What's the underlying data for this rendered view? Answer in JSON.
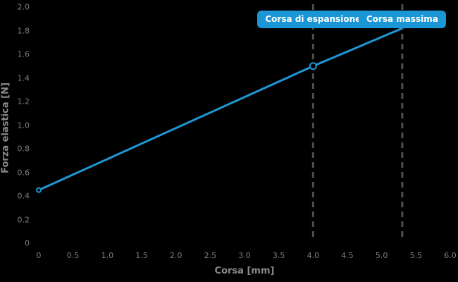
{
  "chart_data": {
    "type": "line",
    "title": "",
    "xlabel": "Corsa [mm]",
    "ylabel": "Forza elastica [N]",
    "xlim": [
      0,
      6
    ],
    "ylim": [
      0,
      2
    ],
    "grid": false,
    "background": "#000000",
    "tick_color": "#7e7e7e",
    "axis_label_color": "#8a8a8a",
    "xticks": {
      "values": [
        0,
        0.5,
        1,
        1.5,
        2,
        2.5,
        3,
        3.5,
        4,
        4.5,
        5,
        5.5,
        6
      ],
      "labels": [
        "0",
        "0.5",
        "1.0",
        "1.5",
        "2.0",
        "2.5",
        "3.0",
        "3.5",
        "4.0",
        "4.5",
        "5.0",
        "5.5",
        "6.0"
      ]
    },
    "yticks": {
      "values": [
        0,
        0.2,
        0.4,
        0.6,
        0.8,
        1,
        1.2,
        1.4,
        1.6,
        1.8,
        2
      ],
      "labels": [
        "0",
        "0.2",
        "0.4",
        "0.6",
        "0.8",
        "1.0",
        "1.2",
        "1.4",
        "1.6",
        "1.8",
        "2.0"
      ]
    },
    "series": [
      {
        "name": "forza-elastica",
        "color": "#1e97d4",
        "line_width": 3,
        "points": [
          {
            "x": 0,
            "y": 0.45
          },
          {
            "x": 4.0,
            "y": 1.5
          },
          {
            "x": 5.3,
            "y": 1.82
          }
        ],
        "markers": [
          {
            "x": 0,
            "y": 0.45,
            "r": 3
          },
          {
            "x": 4.0,
            "y": 1.5,
            "r": 4.5
          }
        ]
      }
    ],
    "annotations": [
      {
        "label": "Corsa di espansione",
        "x": 4.0,
        "line_style": "dashed"
      },
      {
        "label": "Corsa massima",
        "x": 5.3,
        "line_style": "dashed"
      }
    ],
    "annotation_line_color": "#4f4f4f",
    "badge_bg": "#1a96d6",
    "badge_text_color": "#ffffff"
  }
}
